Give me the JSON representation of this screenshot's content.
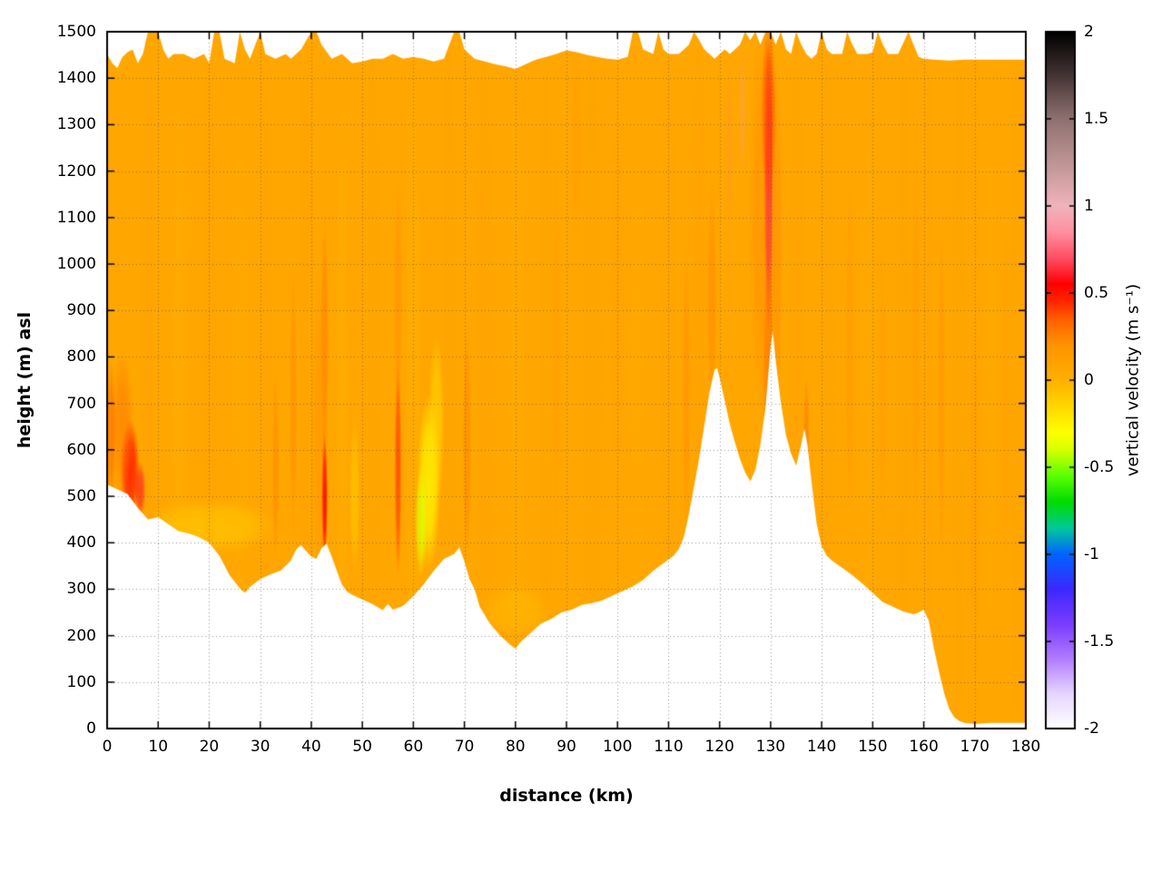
{
  "chart_data": {
    "type": "heatmap",
    "title": "",
    "xlabel": "distance (km)",
    "ylabel": "height (m) asl",
    "colorbar_label": "vertical velocity (m s⁻¹)",
    "xlim": [
      0,
      180
    ],
    "ylim": [
      0,
      1500
    ],
    "zlim": [
      -2,
      2
    ],
    "grid": true,
    "xticks": [
      0,
      10,
      20,
      30,
      40,
      50,
      60,
      70,
      80,
      90,
      100,
      110,
      120,
      130,
      140,
      150,
      160,
      170,
      180
    ],
    "yticks": [
      0,
      100,
      200,
      300,
      400,
      500,
      600,
      700,
      800,
      900,
      1000,
      1100,
      1200,
      1300,
      1400,
      1500
    ],
    "colorbar_ticks": [
      -2,
      -1.5,
      -1,
      -0.5,
      0,
      0.5,
      1,
      1.5,
      2
    ],
    "colormap_stops": [
      [
        -2.0,
        "#ffffff"
      ],
      [
        -1.8,
        "#e6d5ff"
      ],
      [
        -1.6,
        "#b27cff"
      ],
      [
        -1.4,
        "#7a3cff"
      ],
      [
        -1.2,
        "#3c28ff"
      ],
      [
        -1.0,
        "#0064ff"
      ],
      [
        -0.85,
        "#00c89b"
      ],
      [
        -0.7,
        "#00dc00"
      ],
      [
        -0.55,
        "#5aff00"
      ],
      [
        -0.4,
        "#d7ff00"
      ],
      [
        -0.3,
        "#ffff00"
      ],
      [
        -0.15,
        "#ffd700"
      ],
      [
        0.0,
        "#ffb000"
      ],
      [
        0.2,
        "#ff9400"
      ],
      [
        0.35,
        "#ff5f00"
      ],
      [
        0.45,
        "#ff2600"
      ],
      [
        0.55,
        "#ff0000"
      ],
      [
        0.7,
        "#ff4d64"
      ],
      [
        0.85,
        "#ff8fa0"
      ],
      [
        1.0,
        "#f0b4bc"
      ],
      [
        1.2,
        "#c89b9b"
      ],
      [
        1.5,
        "#8f7171"
      ],
      [
        1.75,
        "#453434"
      ],
      [
        2.0,
        "#000000"
      ]
    ],
    "background_value": 0.07,
    "terrain_profile": [
      [
        0,
        525
      ],
      [
        2,
        515
      ],
      [
        4,
        505
      ],
      [
        6,
        475
      ],
      [
        8,
        450
      ],
      [
        10,
        455
      ],
      [
        12,
        440
      ],
      [
        14,
        425
      ],
      [
        16,
        420
      ],
      [
        18,
        412
      ],
      [
        20,
        400
      ],
      [
        22,
        372
      ],
      [
        24,
        330
      ],
      [
        26,
        302
      ],
      [
        27,
        292
      ],
      [
        28,
        305
      ],
      [
        30,
        322
      ],
      [
        32,
        332
      ],
      [
        34,
        340
      ],
      [
        36,
        362
      ],
      [
        37,
        385
      ],
      [
        38,
        395
      ],
      [
        39,
        382
      ],
      [
        40,
        370
      ],
      [
        41,
        365
      ],
      [
        42,
        388
      ],
      [
        43,
        398
      ],
      [
        44,
        370
      ],
      [
        45,
        340
      ],
      [
        46,
        310
      ],
      [
        47,
        295
      ],
      [
        48,
        288
      ],
      [
        50,
        278
      ],
      [
        52,
        268
      ],
      [
        54,
        255
      ],
      [
        55,
        268
      ],
      [
        56,
        256
      ],
      [
        58,
        264
      ],
      [
        60,
        285
      ],
      [
        62,
        310
      ],
      [
        64,
        340
      ],
      [
        66,
        365
      ],
      [
        68,
        376
      ],
      [
        69,
        390
      ],
      [
        70,
        360
      ],
      [
        71,
        322
      ],
      [
        72,
        300
      ],
      [
        73,
        262
      ],
      [
        75,
        226
      ],
      [
        77,
        200
      ],
      [
        79,
        180
      ],
      [
        80,
        172
      ],
      [
        81,
        186
      ],
      [
        83,
        206
      ],
      [
        85,
        226
      ],
      [
        87,
        236
      ],
      [
        89,
        250
      ],
      [
        91,
        256
      ],
      [
        93,
        266
      ],
      [
        95,
        270
      ],
      [
        97,
        276
      ],
      [
        99,
        286
      ],
      [
        101,
        296
      ],
      [
        103,
        306
      ],
      [
        105,
        320
      ],
      [
        107,
        340
      ],
      [
        109,
        356
      ],
      [
        111,
        372
      ],
      [
        112,
        386
      ],
      [
        113,
        412
      ],
      [
        114,
        462
      ],
      [
        115,
        522
      ],
      [
        116,
        582
      ],
      [
        117,
        652
      ],
      [
        118,
        722
      ],
      [
        119,
        772
      ],
      [
        119.5,
        776
      ],
      [
        120,
        756
      ],
      [
        121,
        706
      ],
      [
        122,
        656
      ],
      [
        123,
        616
      ],
      [
        124,
        580
      ],
      [
        125,
        552
      ],
      [
        126,
        532
      ],
      [
        127,
        556
      ],
      [
        128,
        612
      ],
      [
        129,
        692
      ],
      [
        130,
        822
      ],
      [
        130.4,
        856
      ],
      [
        131,
        792
      ],
      [
        132,
        702
      ],
      [
        133,
        632
      ],
      [
        134,
        592
      ],
      [
        135,
        566
      ],
      [
        136,
        612
      ],
      [
        136.6,
        646
      ],
      [
        137.2,
        612
      ],
      [
        138,
        532
      ],
      [
        139,
        442
      ],
      [
        140,
        392
      ],
      [
        141,
        372
      ],
      [
        142,
        362
      ],
      [
        144,
        346
      ],
      [
        146,
        330
      ],
      [
        148,
        312
      ],
      [
        150,
        292
      ],
      [
        152,
        272
      ],
      [
        154,
        262
      ],
      [
        156,
        252
      ],
      [
        158,
        246
      ],
      [
        159,
        250
      ],
      [
        160,
        256
      ],
      [
        161,
        232
      ],
      [
        162,
        172
      ],
      [
        163,
        122
      ],
      [
        164,
        76
      ],
      [
        165,
        42
      ],
      [
        166,
        24
      ],
      [
        167,
        16
      ],
      [
        168,
        12
      ],
      [
        170,
        10
      ],
      [
        173,
        12
      ],
      [
        176,
        12
      ],
      [
        180,
        12
      ]
    ],
    "top_profile": [
      [
        0,
        1452
      ],
      [
        1,
        1432
      ],
      [
        2,
        1422
      ],
      [
        3,
        1446
      ],
      [
        4,
        1456
      ],
      [
        5,
        1462
      ],
      [
        6,
        1432
      ],
      [
        7,
        1452
      ],
      [
        8,
        1500
      ],
      [
        10,
        1500
      ],
      [
        11,
        1462
      ],
      [
        12,
        1442
      ],
      [
        13,
        1452
      ],
      [
        15,
        1452
      ],
      [
        17,
        1442
      ],
      [
        19,
        1452
      ],
      [
        20,
        1432
      ],
      [
        21,
        1500
      ],
      [
        22,
        1500
      ],
      [
        23,
        1442
      ],
      [
        25,
        1432
      ],
      [
        26,
        1500
      ],
      [
        27,
        1462
      ],
      [
        28,
        1442
      ],
      [
        30,
        1500
      ],
      [
        31,
        1452
      ],
      [
        33,
        1442
      ],
      [
        35,
        1452
      ],
      [
        36,
        1442
      ],
      [
        38,
        1462
      ],
      [
        40,
        1500
      ],
      [
        41,
        1500
      ],
      [
        42,
        1472
      ],
      [
        44,
        1442
      ],
      [
        46,
        1452
      ],
      [
        48,
        1432
      ],
      [
        50,
        1436
      ],
      [
        52,
        1442
      ],
      [
        54,
        1442
      ],
      [
        56,
        1452
      ],
      [
        58,
        1442
      ],
      [
        60,
        1446
      ],
      [
        62,
        1442
      ],
      [
        64,
        1436
      ],
      [
        66,
        1442
      ],
      [
        68,
        1500
      ],
      [
        69,
        1500
      ],
      [
        70,
        1462
      ],
      [
        72,
        1442
      ],
      [
        74,
        1436
      ],
      [
        76,
        1430
      ],
      [
        78,
        1426
      ],
      [
        80,
        1420
      ],
      [
        82,
        1430
      ],
      [
        84,
        1440
      ],
      [
        86,
        1446
      ],
      [
        88,
        1452
      ],
      [
        90,
        1460
      ],
      [
        92,
        1456
      ],
      [
        94,
        1450
      ],
      [
        96,
        1446
      ],
      [
        98,
        1442
      ],
      [
        100,
        1440
      ],
      [
        102,
        1446
      ],
      [
        103,
        1500
      ],
      [
        104,
        1500
      ],
      [
        105,
        1462
      ],
      [
        107,
        1452
      ],
      [
        108,
        1500
      ],
      [
        109,
        1462
      ],
      [
        110,
        1452
      ],
      [
        112,
        1452
      ],
      [
        113,
        1462
      ],
      [
        114,
        1472
      ],
      [
        115,
        1500
      ],
      [
        116,
        1482
      ],
      [
        117,
        1462
      ],
      [
        118,
        1452
      ],
      [
        119,
        1442
      ],
      [
        120,
        1452
      ],
      [
        121,
        1462
      ],
      [
        122,
        1452
      ],
      [
        123,
        1462
      ],
      [
        124,
        1472
      ],
      [
        125,
        1500
      ],
      [
        126,
        1482
      ],
      [
        127,
        1500
      ],
      [
        128,
        1472
      ],
      [
        129,
        1500
      ],
      [
        130,
        1500
      ],
      [
        131,
        1472
      ],
      [
        132,
        1500
      ],
      [
        133,
        1462
      ],
      [
        134,
        1452
      ],
      [
        135,
        1500
      ],
      [
        136,
        1472
      ],
      [
        137,
        1452
      ],
      [
        138,
        1442
      ],
      [
        139,
        1452
      ],
      [
        140,
        1500
      ],
      [
        141,
        1462
      ],
      [
        142,
        1452
      ],
      [
        144,
        1452
      ],
      [
        145,
        1500
      ],
      [
        146,
        1472
      ],
      [
        147,
        1452
      ],
      [
        149,
        1452
      ],
      [
        150,
        1456
      ],
      [
        151,
        1500
      ],
      [
        152,
        1472
      ],
      [
        153,
        1452
      ],
      [
        155,
        1452
      ],
      [
        157,
        1500
      ],
      [
        158,
        1472
      ],
      [
        159,
        1446
      ],
      [
        160,
        1442
      ],
      [
        162,
        1440
      ],
      [
        165,
        1438
      ],
      [
        168,
        1440
      ],
      [
        172,
        1440
      ],
      [
        176,
        1440
      ],
      [
        180,
        1440
      ]
    ],
    "features": [
      [
        129.6,
        1160,
        0.9,
        310,
        0.65,
        1.0
      ],
      [
        129.6,
        1320,
        1.5,
        200,
        0.45,
        0.6
      ],
      [
        129.6,
        760,
        1.2,
        260,
        0.32,
        0.55
      ],
      [
        128.5,
        1100,
        2.8,
        430,
        0.27,
        0.3
      ],
      [
        131.3,
        1050,
        1.1,
        380,
        0.28,
        0.3
      ],
      [
        42.6,
        500,
        0.6,
        140,
        0.55,
        1.0
      ],
      [
        42.6,
        830,
        0.8,
        280,
        0.3,
        0.45
      ],
      [
        41.6,
        650,
        1.6,
        350,
        0.22,
        0.35
      ],
      [
        57,
        560,
        0.7,
        230,
        0.42,
        0.75
      ],
      [
        57,
        920,
        0.9,
        260,
        0.25,
        0.35
      ],
      [
        4.5,
        555,
        1.9,
        110,
        0.5,
        0.85
      ],
      [
        3,
        650,
        2.2,
        160,
        0.3,
        0.5
      ],
      [
        6.5,
        515,
        1.1,
        60,
        0.6,
        0.7
      ],
      [
        0.8,
        640,
        0.9,
        160,
        0.35,
        0.55
      ],
      [
        63,
        530,
        2.3,
        190,
        -0.28,
        0.8
      ],
      [
        61.5,
        445,
        1.2,
        120,
        -0.38,
        0.85
      ],
      [
        64.5,
        660,
        1.6,
        190,
        -0.2,
        0.55
      ],
      [
        48.5,
        500,
        1.1,
        170,
        -0.15,
        0.5
      ],
      [
        20,
        435,
        14,
        60,
        -0.2,
        0.4
      ],
      [
        80,
        255,
        7,
        60,
        -0.12,
        0.3
      ],
      [
        36.5,
        700,
        0.8,
        300,
        0.25,
        0.4
      ],
      [
        33,
        560,
        0.7,
        210,
        0.3,
        0.35
      ],
      [
        70.5,
        610,
        0.8,
        260,
        0.28,
        0.45
      ],
      [
        88,
        820,
        1,
        420,
        0.18,
        0.3
      ],
      [
        100,
        920,
        1.2,
        420,
        0.16,
        0.22
      ],
      [
        113.5,
        720,
        0.9,
        320,
        0.25,
        0.35
      ],
      [
        118.5,
        920,
        1,
        260,
        0.28,
        0.35
      ],
      [
        124.5,
        1330,
        0.8,
        160,
        0.9,
        0.22
      ],
      [
        122,
        1250,
        0.6,
        180,
        0.8,
        0.18
      ],
      [
        92,
        1260,
        1.2,
        210,
        0.2,
        0.25
      ],
      [
        137,
        630,
        0.6,
        130,
        0.35,
        0.4
      ],
      [
        145.5,
        820,
        0.9,
        360,
        0.22,
        0.3
      ],
      [
        152,
        720,
        0.8,
        320,
        0.2,
        0.28
      ],
      [
        158.5,
        820,
        0.9,
        420,
        0.22,
        0.28
      ],
      [
        163.5,
        720,
        0.8,
        360,
        0.25,
        0.3
      ],
      [
        170,
        520,
        1,
        420,
        0.2,
        0.28
      ],
      [
        176,
        720,
        0.9,
        360,
        0.18,
        0.22
      ],
      [
        8,
        750,
        1.5,
        800,
        0.16,
        0.22
      ],
      [
        14,
        750,
        2,
        800,
        -0.06,
        0.18
      ],
      [
        20,
        750,
        1.5,
        800,
        0.15,
        0.18
      ],
      [
        26,
        750,
        2,
        800,
        -0.05,
        0.16
      ],
      [
        31,
        750,
        1.2,
        800,
        0.14,
        0.18
      ],
      [
        39,
        750,
        1.5,
        800,
        0.15,
        0.2
      ],
      [
        46,
        750,
        1.5,
        800,
        -0.08,
        0.16
      ],
      [
        52,
        750,
        1.5,
        800,
        0.12,
        0.16
      ],
      [
        60,
        750,
        2,
        800,
        -0.1,
        0.16
      ],
      [
        67,
        750,
        1.5,
        800,
        0.12,
        0.16
      ],
      [
        74,
        750,
        1.5,
        800,
        0.14,
        0.2
      ],
      [
        80,
        750,
        2,
        800,
        -0.07,
        0.15
      ],
      [
        86,
        750,
        1.5,
        800,
        0.1,
        0.15
      ],
      [
        95,
        750,
        2,
        800,
        0.12,
        0.16
      ],
      [
        104,
        750,
        2,
        800,
        -0.05,
        0.12
      ],
      [
        110,
        750,
        1.5,
        800,
        0.12,
        0.16
      ],
      [
        116,
        750,
        1.5,
        800,
        0.18,
        0.2
      ],
      [
        135,
        750,
        1.5,
        800,
        0.15,
        0.16
      ],
      [
        141,
        750,
        1.5,
        800,
        0.12,
        0.16
      ],
      [
        149,
        750,
        2,
        800,
        -0.05,
        0.12
      ],
      [
        156,
        750,
        1.5,
        800,
        0.1,
        0.15
      ],
      [
        161,
        750,
        1,
        800,
        0.14,
        0.16
      ],
      [
        167,
        750,
        1.5,
        800,
        0.12,
        0.15
      ],
      [
        173,
        750,
        2,
        800,
        -0.05,
        0.12
      ],
      [
        178,
        750,
        1.2,
        800,
        0.12,
        0.15
      ]
    ]
  }
}
